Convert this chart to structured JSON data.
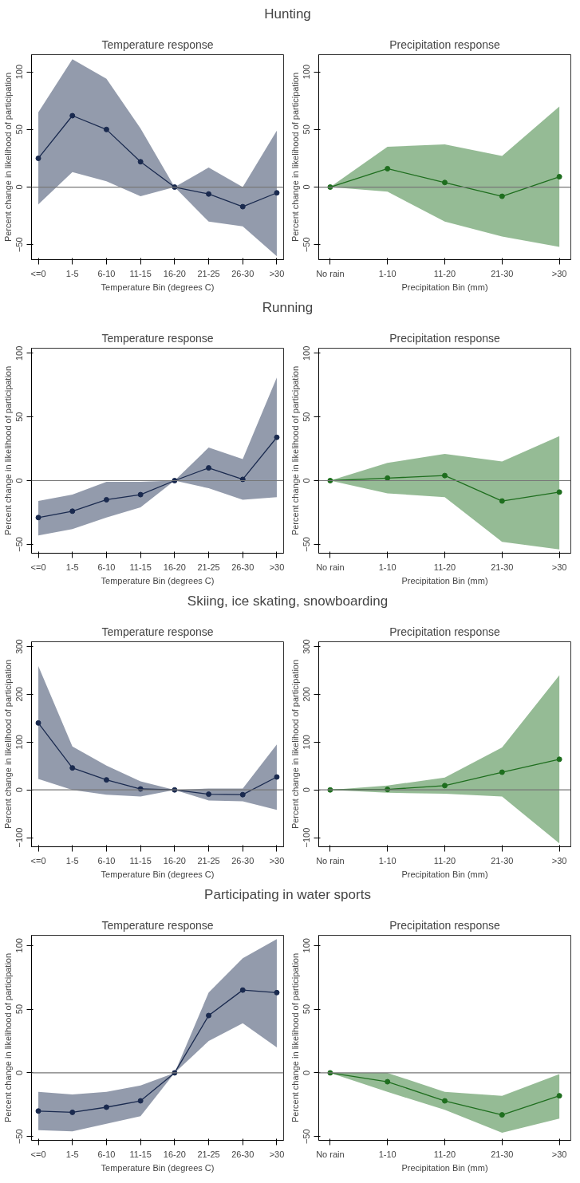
{
  "chart_data": [
    {
      "type": "other",
      "title": "Hunting"
    },
    {
      "type": "line",
      "title": "Temperature response",
      "xlabel": "Temperature Bin (degrees C)",
      "ylabel": "Percent change in likelihood of participation",
      "categories": [
        "<=0",
        "1-5",
        "6-10",
        "11-15",
        "16-20",
        "21-25",
        "26-30",
        ">30"
      ],
      "ylim": [
        -63,
        115
      ],
      "yticks": [
        -50,
        0,
        50,
        100
      ],
      "marker": "circle",
      "ref_lines": [
        {
          "axis": "y",
          "value": 0
        }
      ],
      "series": [
        {
          "color": "#1a2a4f",
          "values": [
            25,
            62,
            50,
            22,
            0,
            -6,
            -17,
            -5
          ],
          "lower": [
            -15,
            13,
            5,
            -8,
            0,
            -30,
            -34,
            -60
          ],
          "upper": [
            65,
            111,
            94,
            51,
            0,
            17,
            0,
            49
          ]
        }
      ]
    },
    {
      "type": "line",
      "title": "Precipitation response",
      "xlabel": "Precipitation Bin (mm)",
      "ylabel": "Percent change in likelihood of participation",
      "categories": [
        "No rain",
        "1-10",
        "11-20",
        "21-30",
        ">30"
      ],
      "ylim": [
        -63,
        115
      ],
      "yticks": [
        -50,
        0,
        50,
        100
      ],
      "marker": "circle",
      "ref_lines": [
        {
          "axis": "y",
          "value": 0
        }
      ],
      "series": [
        {
          "color": "#1e6e1e",
          "values": [
            0,
            16,
            4,
            -8,
            9
          ],
          "lower": [
            0,
            -4,
            -30,
            -43,
            -52
          ],
          "upper": [
            0,
            35,
            37,
            27,
            70
          ]
        }
      ]
    },
    {
      "type": "other",
      "title": "Running"
    },
    {
      "type": "line",
      "title": "Temperature response",
      "xlabel": "Temperature Bin (degrees C)",
      "ylabel": "Percent change in likelihood of participation",
      "categories": [
        "<=0",
        "1-5",
        "6-10",
        "11-15",
        "16-20",
        "21-25",
        "26-30",
        ">30"
      ],
      "ylim": [
        -57,
        104
      ],
      "yticks": [
        -50,
        0,
        50,
        100
      ],
      "marker": "circle",
      "ref_lines": [
        {
          "axis": "y",
          "value": 0
        }
      ],
      "series": [
        {
          "color": "#1a2a4f",
          "values": [
            -29,
            -24,
            -15,
            -11,
            0,
            10,
            1,
            34
          ],
          "lower": [
            -43,
            -38,
            -29,
            -21,
            0,
            -6,
            -15,
            -13
          ],
          "upper": [
            -16,
            -11,
            -1,
            -1,
            0,
            26,
            17,
            81
          ]
        }
      ]
    },
    {
      "type": "line",
      "title": "Precipitation response",
      "xlabel": "Precipitation Bin (mm)",
      "ylabel": "Percent change in likelihood of participation",
      "categories": [
        "No rain",
        "1-10",
        "11-20",
        "21-30",
        ">30"
      ],
      "ylim": [
        -57,
        104
      ],
      "yticks": [
        -50,
        0,
        50,
        100
      ],
      "marker": "circle",
      "ref_lines": [
        {
          "axis": "y",
          "value": 0
        }
      ],
      "series": [
        {
          "color": "#1e6e1e",
          "values": [
            0,
            2,
            4,
            -16,
            -9
          ],
          "lower": [
            0,
            -10,
            -13,
            -48,
            -54
          ],
          "upper": [
            0,
            14,
            21,
            15,
            35
          ]
        }
      ]
    },
    {
      "type": "other",
      "title": "Skiing, ice skating, snowboarding"
    },
    {
      "type": "line",
      "title": "Temperature response",
      "xlabel": "Temperature Bin (degrees C)",
      "ylabel": "Percent change in likelihood of participation",
      "categories": [
        "<=0",
        "1-5",
        "6-10",
        "11-15",
        "16-20",
        "21-25",
        "26-30",
        ">30"
      ],
      "ylim": [
        -119,
        310
      ],
      "yticks": [
        -100,
        0,
        100,
        200,
        300
      ],
      "marker": "circle",
      "ref_lines": [
        {
          "axis": "y",
          "value": 0
        }
      ],
      "series": [
        {
          "color": "#1a2a4f",
          "values": [
            140,
            46,
            21,
            2,
            0,
            -9,
            -10,
            27
          ],
          "lower": [
            23,
            0,
            -10,
            -14,
            0,
            -22,
            -24,
            -42
          ],
          "upper": [
            259,
            91,
            51,
            18,
            0,
            3,
            3,
            95
          ]
        }
      ]
    },
    {
      "type": "line",
      "title": "Precipitation response",
      "xlabel": "Precipitation Bin (mm)",
      "ylabel": "Percent change in likelihood of participation",
      "categories": [
        "No rain",
        "1-10",
        "11-20",
        "21-30",
        ">30"
      ],
      "ylim": [
        -119,
        310
      ],
      "yticks": [
        -100,
        0,
        100,
        200,
        300
      ],
      "marker": "circle",
      "ref_lines": [
        {
          "axis": "y",
          "value": 0
        }
      ],
      "series": [
        {
          "color": "#1e6e1e",
          "values": [
            0,
            1,
            9,
            37,
            64
          ],
          "lower": [
            0,
            -6,
            -8,
            -14,
            -112
          ],
          "upper": [
            0,
            9,
            26,
            89,
            240
          ]
        }
      ]
    },
    {
      "type": "other",
      "title": "Participating in water sports"
    },
    {
      "type": "line",
      "title": "Temperature response",
      "xlabel": "Temperature Bin (degrees C)",
      "ylabel": "Percent change in likelihood of participation",
      "categories": [
        "<=0",
        "1-5",
        "6-10",
        "11-15",
        "16-20",
        "21-25",
        "26-30",
        ">30"
      ],
      "ylim": [
        -53,
        108
      ],
      "yticks": [
        -50,
        0,
        50,
        100
      ],
      "marker": "circle",
      "ref_lines": [
        {
          "axis": "y",
          "value": 0
        }
      ],
      "series": [
        {
          "color": "#1a2a4f",
          "values": [
            -30,
            -31,
            -27,
            -22,
            0,
            45,
            65,
            63
          ],
          "lower": [
            -45,
            -46,
            -40,
            -34,
            0,
            25,
            39,
            20
          ],
          "upper": [
            -15,
            -17,
            -15,
            -10,
            0,
            63,
            90,
            105
          ]
        }
      ]
    },
    {
      "type": "line",
      "title": "Precipitation response",
      "xlabel": "Precipitation Bin (mm)",
      "ylabel": "Percent change in likelihood of participation",
      "categories": [
        "No rain",
        "1-10",
        "11-20",
        "21-30",
        ">30"
      ],
      "ylim": [
        -53,
        108
      ],
      "yticks": [
        -50,
        0,
        50,
        100
      ],
      "marker": "circle",
      "ref_lines": [
        {
          "axis": "y",
          "value": 0
        }
      ],
      "series": [
        {
          "color": "#1e6e1e",
          "values": [
            0,
            -7,
            -22,
            -33,
            -18
          ],
          "lower": [
            0,
            -15,
            -29,
            -47,
            -36
          ],
          "upper": [
            0,
            0,
            -15,
            -18,
            -1
          ]
        }
      ]
    }
  ]
}
